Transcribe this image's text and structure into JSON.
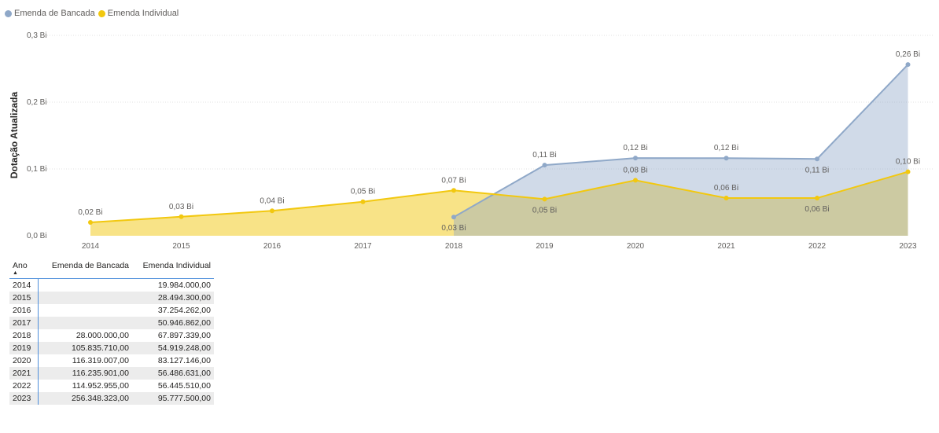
{
  "legend": {
    "items": [
      {
        "label": "Emenda de Bancada",
        "color": "#8fa8c8"
      },
      {
        "label": "Emenda Individual",
        "color": "#f2c80f"
      }
    ]
  },
  "chart_data": {
    "type": "area",
    "ylabel": "Dotação Atualizada",
    "xlabel": "",
    "ylim": [
      0,
      0.3
    ],
    "yticks": [
      {
        "value": 0,
        "label": "0,0 Bi"
      },
      {
        "value": 0.1,
        "label": "0,1 Bi"
      },
      {
        "value": 0.2,
        "label": "0,2 Bi"
      },
      {
        "value": 0.3,
        "label": "0,3 Bi"
      }
    ],
    "grid": true,
    "legend_position": "top-left",
    "x": [
      "2014",
      "2015",
      "2016",
      "2017",
      "2018",
      "2019",
      "2020",
      "2021",
      "2022",
      "2023"
    ],
    "series": [
      {
        "name": "Emenda de Bancada",
        "color": "#8fa8c8",
        "values": [
          null,
          null,
          null,
          null,
          0.028,
          0.1058,
          0.1163,
          0.1162,
          0.115,
          0.2563
        ],
        "labels": [
          null,
          null,
          null,
          null,
          "0,03 Bi",
          "0,11 Bi",
          "0,12 Bi",
          "0,12 Bi",
          "0,11 Bi",
          "0,26 Bi"
        ],
        "label_pos": [
          null,
          null,
          null,
          null,
          "below",
          "above",
          "above",
          "above",
          "below",
          "above"
        ]
      },
      {
        "name": "Emenda Individual",
        "color": "#f2c80f",
        "values": [
          0.02,
          0.0285,
          0.0373,
          0.0509,
          0.0679,
          0.0549,
          0.0831,
          0.0565,
          0.0564,
          0.0958
        ],
        "labels": [
          "0,02 Bi",
          "0,03 Bi",
          "0,04 Bi",
          "0,05 Bi",
          "0,07 Bi",
          "0,05 Bi",
          "0,08 Bi",
          "0,06 Bi",
          "0,06 Bi",
          "0,10 Bi"
        ],
        "label_pos": [
          "above",
          "above",
          "above",
          "above",
          "above",
          "below",
          "above",
          "above",
          "below",
          "above"
        ]
      }
    ]
  },
  "table": {
    "headers": [
      "Ano",
      "Emenda de Bancada",
      "Emenda Individual"
    ],
    "sort_indicator": "▲",
    "rows": [
      [
        "2014",
        "",
        "19.984.000,00"
      ],
      [
        "2015",
        "",
        "28.494.300,00"
      ],
      [
        "2016",
        "",
        "37.254.262,00"
      ],
      [
        "2017",
        "",
        "50.946.862,00"
      ],
      [
        "2018",
        "28.000.000,00",
        "67.897.339,00"
      ],
      [
        "2019",
        "105.835.710,00",
        "54.919.248,00"
      ],
      [
        "2020",
        "116.319.007,00",
        "83.127.146,00"
      ],
      [
        "2021",
        "116.235.901,00",
        "56.486.631,00"
      ],
      [
        "2022",
        "114.952.955,00",
        "56.445.510,00"
      ],
      [
        "2023",
        "256.348.323,00",
        "95.777.500,00"
      ]
    ]
  }
}
